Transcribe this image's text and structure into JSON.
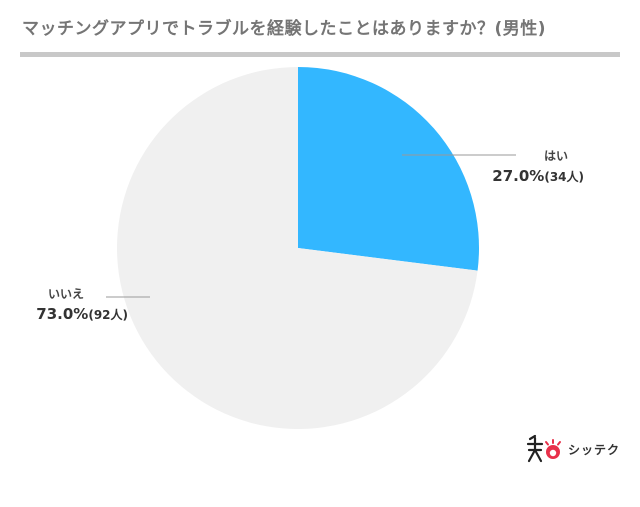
{
  "header": {
    "title": "マッチングアプリでトラブルを経験したことはありますか？(男性)"
  },
  "chart_data": {
    "type": "pie",
    "start": "12 o'clock",
    "direction": "clockwise",
    "slices": [
      {
        "name": "はい",
        "percent": 27.0,
        "percent_label": "27.0%",
        "count_label": "(34人)",
        "color": "#33b7ff"
      },
      {
        "name": "いいえ",
        "percent": 73.0,
        "percent_label": "73.0%",
        "count_label": "(92人)",
        "color": "#f0f0f0"
      }
    ]
  },
  "brand": {
    "logo_text": "シッテク",
    "accent": "#e8304a"
  }
}
